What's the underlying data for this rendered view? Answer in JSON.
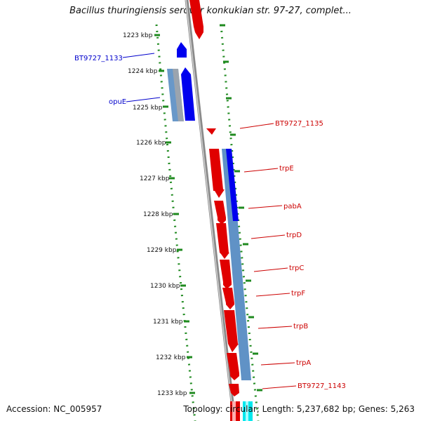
{
  "title": "Bacillus thuringiensis serovar konkukian str. 97-27, complet...",
  "footer": {
    "accession": "Accession: NC_005957",
    "summary": "Topology: circular; Length: 5,237,682 bp; Genes: 5,263"
  },
  "colors": {
    "forward_gene": "#e00000",
    "reverse_gene": "#0000ee",
    "steelblue_feature": "#4f86c0",
    "backbone": "#888888",
    "tick_dots": "#1f8a1f",
    "label_red": "#cc0000",
    "label_blue": "#0000cc"
  },
  "ticks": [
    {
      "label": "1223 kbp"
    },
    {
      "label": "1224 kbp"
    },
    {
      "label": "1225 kbp"
    },
    {
      "label": "1226 kbp"
    },
    {
      "label": "1227 kbp"
    },
    {
      "label": "1228 kbp"
    },
    {
      "label": "1229 kbp"
    },
    {
      "label": "1230 kbp"
    },
    {
      "label": "1231 kbp"
    },
    {
      "label": "1232 kbp"
    },
    {
      "label": "1233 kbp"
    }
  ],
  "left_labels": [
    "BT9727_1133",
    "opuE"
  ],
  "right_labels": [
    "BT9727_1135",
    "trpE",
    "pabA",
    "trpD",
    "trpC",
    "trpF",
    "trpB",
    "trpA",
    "BT9727_1143"
  ]
}
